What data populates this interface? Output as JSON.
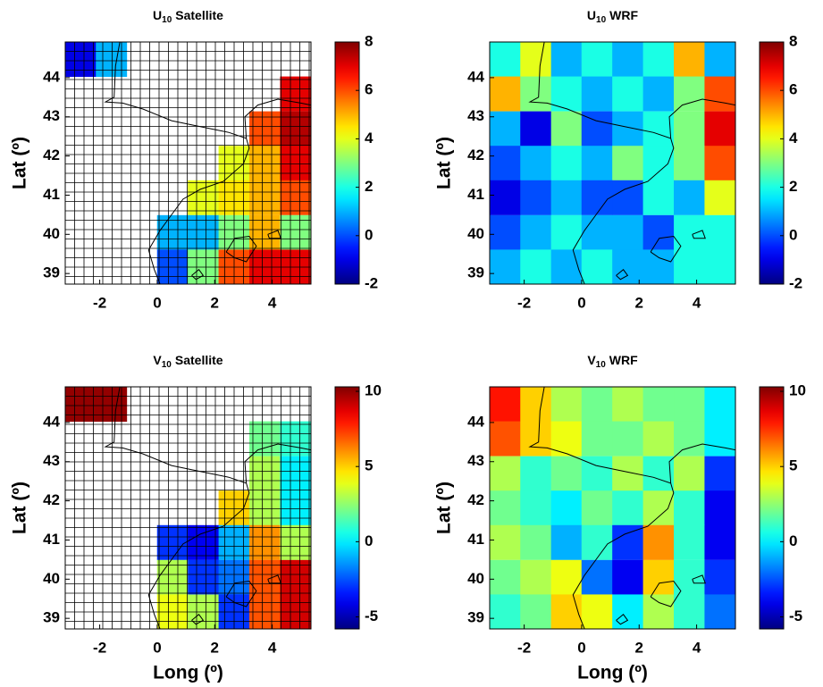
{
  "chart_data": [
    {
      "type": "heatmap",
      "title_main": "U",
      "title_sub": "10",
      "title_rest": "Satellite",
      "ylabel": "Lat (º)",
      "x": [
        -2.67,
        -1.6,
        -0.53,
        0.53,
        1.6,
        2.67,
        3.74,
        4.81
      ],
      "y": [
        44.47,
        43.59,
        42.7,
        41.82,
        40.94,
        40.05,
        39.17
      ],
      "values": [
        [
          -1,
          1,
          null,
          null,
          null,
          null,
          null,
          null
        ],
        [
          null,
          null,
          null,
          null,
          null,
          null,
          null,
          7
        ],
        [
          null,
          null,
          null,
          null,
          null,
          null,
          6,
          7.5
        ],
        [
          null,
          null,
          null,
          null,
          null,
          4,
          5,
          7
        ],
        [
          null,
          null,
          null,
          null,
          4,
          4.5,
          5,
          6
        ],
        [
          null,
          null,
          null,
          1,
          1,
          3,
          5,
          3
        ],
        [
          null,
          null,
          null,
          0,
          3,
          6,
          7,
          7
        ]
      ],
      "xlim": [
        -3.2,
        5.35
      ],
      "ylim": [
        38.73,
        44.91
      ],
      "xticks": [
        -2,
        0,
        2,
        4
      ],
      "yticks": [
        39,
        40,
        41,
        42,
        43,
        44
      ],
      "clim": [
        -2,
        8
      ],
      "cticks": [
        -2,
        0,
        2,
        4,
        6,
        8
      ],
      "colormap": "jet",
      "grid": true
    },
    {
      "type": "heatmap",
      "title_main": "U",
      "title_sub": "10",
      "title_rest": "WRF",
      "ylabel": "Lat (º)",
      "x": [
        -2.67,
        -1.6,
        -0.53,
        0.53,
        1.6,
        2.67,
        3.74,
        4.81
      ],
      "y": [
        44.47,
        43.59,
        42.7,
        41.82,
        40.94,
        40.05,
        39.17
      ],
      "values": [
        [
          2,
          4,
          1,
          2,
          1,
          2,
          5,
          1
        ],
        [
          5,
          3,
          2,
          1,
          2,
          1,
          3,
          6
        ],
        [
          1,
          -1,
          3,
          0,
          1,
          2,
          3,
          7
        ],
        [
          0,
          1,
          2,
          1,
          3,
          2,
          3,
          6
        ],
        [
          -1,
          0,
          1,
          0,
          0,
          2,
          1,
          4
        ],
        [
          0,
          1,
          2,
          1,
          1,
          0,
          2,
          2
        ],
        [
          1,
          2,
          1,
          2,
          1,
          1,
          2,
          2
        ]
      ],
      "xlim": [
        -3.2,
        5.35
      ],
      "ylim": [
        38.73,
        44.91
      ],
      "xticks": [
        -2,
        0,
        2,
        4
      ],
      "yticks": [
        39,
        40,
        41,
        42,
        43,
        44
      ],
      "clim": [
        -2,
        8
      ],
      "cticks": [
        -2,
        0,
        2,
        4,
        6,
        8
      ],
      "colormap": "jet",
      "grid": false
    },
    {
      "type": "heatmap",
      "title_main": "V",
      "title_sub": "10",
      "title_rest": "Satellite",
      "ylabel": "Lat (º)",
      "xlabel": "Long (º)",
      "x": [
        -2.67,
        -1.6,
        -0.53,
        0.53,
        1.6,
        2.67,
        3.74,
        4.81
      ],
      "y": [
        44.47,
        43.59,
        42.7,
        41.82,
        40.94,
        40.05,
        39.17
      ],
      "values": [
        [
          10,
          10,
          null,
          null,
          null,
          null,
          null,
          null
        ],
        [
          null,
          null,
          null,
          null,
          null,
          null,
          2,
          1
        ],
        [
          null,
          null,
          null,
          null,
          null,
          null,
          3,
          0
        ],
        [
          null,
          null,
          null,
          null,
          null,
          5,
          3,
          0
        ],
        [
          null,
          null,
          null,
          -3,
          -4,
          -1,
          6,
          3
        ],
        [
          null,
          null,
          null,
          3,
          -3,
          -2,
          7,
          9
        ],
        [
          null,
          null,
          null,
          4,
          3,
          -3,
          7,
          9
        ]
      ],
      "xlim": [
        -3.2,
        5.35
      ],
      "ylim": [
        38.73,
        44.91
      ],
      "xticks": [
        -2,
        0,
        2,
        4
      ],
      "yticks": [
        39,
        40,
        41,
        42,
        43,
        44
      ],
      "clim": [
        -5.8,
        10.3
      ],
      "cticks": [
        -5,
        0,
        5,
        10
      ],
      "colormap": "jet",
      "grid": true
    },
    {
      "type": "heatmap",
      "title_main": "V",
      "title_sub": "10",
      "title_rest": "WRF",
      "ylabel": "Lat (º)",
      "xlabel": "Long (º)",
      "x": [
        -2.67,
        -1.6,
        -0.53,
        0.53,
        1.6,
        2.67,
        3.74,
        4.81
      ],
      "y": [
        44.47,
        43.59,
        42.7,
        41.82,
        40.94,
        40.05,
        39.17
      ],
      "values": [
        [
          8,
          5,
          3,
          2,
          3,
          2,
          2,
          0
        ],
        [
          7,
          5,
          4,
          2,
          2,
          3,
          2,
          0
        ],
        [
          3,
          1,
          2,
          1,
          3,
          1,
          3,
          -3
        ],
        [
          2,
          1,
          0,
          2,
          1,
          3,
          1,
          -4
        ],
        [
          3,
          2,
          -1,
          1,
          -3,
          6,
          1,
          -4
        ],
        [
          2,
          3,
          4,
          -2,
          -4,
          5,
          1,
          -3
        ],
        [
          1,
          2,
          5,
          4,
          0,
          3,
          1,
          -2
        ]
      ],
      "xlim": [
        -3.2,
        5.35
      ],
      "ylim": [
        38.73,
        44.91
      ],
      "xticks": [
        -2,
        0,
        2,
        4
      ],
      "yticks": [
        39,
        40,
        41,
        42,
        43,
        44
      ],
      "clim": [
        -5.8,
        10.3
      ],
      "cticks": [
        -5,
        0,
        5,
        10
      ],
      "colormap": "jet",
      "grid": false
    }
  ]
}
